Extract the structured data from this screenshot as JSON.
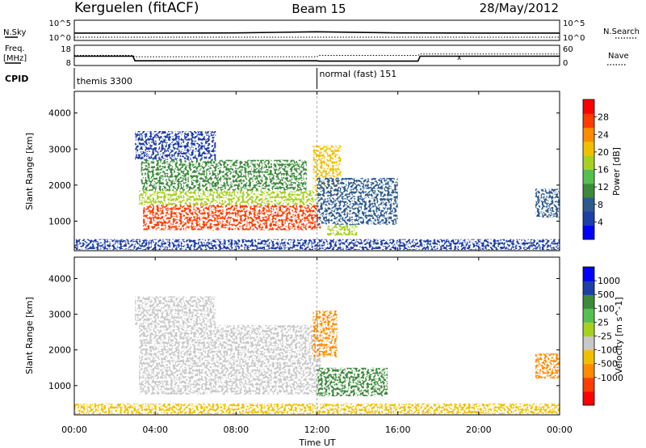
{
  "header": {
    "station": "Kerguelen (fitACF)",
    "beam": "Beam 15",
    "date": "28/May/2012"
  },
  "nsky_panel": {
    "left_label": "N.Sky",
    "left_ticks": [
      "10^5",
      "10^0"
    ],
    "right_ticks": [
      "10^5",
      "10^0"
    ],
    "right_label": "N.Search"
  },
  "freq_panel": {
    "left_label_1": "Freq.",
    "left_label_2": "[MHz]",
    "left_ticks": [
      "18",
      "8"
    ],
    "right_ticks": [
      "60",
      "0"
    ],
    "right_label": "Nave"
  },
  "cpid": {
    "label": "CPID",
    "segments": [
      {
        "name": "themis 3300",
        "start_hour": 0
      },
      {
        "name": "normal (fast) 151",
        "start_hour": 12
      }
    ]
  },
  "time_axis": {
    "label": "Time UT",
    "range": [
      0,
      24
    ],
    "ticks": [
      {
        "hour": 0,
        "label": "00:00"
      },
      {
        "hour": 4,
        "label": "04:00"
      },
      {
        "hour": 8,
        "label": "08:00"
      },
      {
        "hour": 12,
        "label": "12:00"
      },
      {
        "hour": 16,
        "label": "16:00"
      },
      {
        "hour": 20,
        "label": "20:00"
      },
      {
        "hour": 24,
        "label": "00:00"
      }
    ]
  },
  "colors": {
    "power_scale": [
      "#0000ff",
      "#1e3ea8",
      "#2e5a8c",
      "#3c8a3c",
      "#55c050",
      "#a8d020",
      "#f0c000",
      "#ff8c00",
      "#ff3c00",
      "#ff0000"
    ],
    "velocity_scale": [
      "#ff0000",
      "#ff3c00",
      "#ff8c00",
      "#f0c000",
      "#c8c8c8",
      "#a8d020",
      "#55c050",
      "#3c8a3c",
      "#1e3ea8",
      "#0000ff"
    ]
  },
  "chart_data": [
    {
      "type": "line",
      "name": "nsky",
      "x": [
        0,
        4,
        8,
        10,
        12,
        16,
        20,
        24
      ],
      "series": [
        {
          "name": "N.Sky",
          "values": [
            50,
            50,
            55,
            80,
            120,
            55,
            50,
            50
          ]
        },
        {
          "name": "N.Search",
          "values": [
            3,
            3,
            3,
            3,
            3,
            3,
            3,
            3
          ]
        }
      ]
    },
    {
      "type": "line",
      "name": "frequency",
      "x": [
        0,
        2.9,
        3.0,
        12.0,
        12.1,
        17.0,
        17.1,
        24
      ],
      "series": [
        {
          "name": "Freq",
          "values": [
            12.5,
            12.5,
            9.8,
            9.8,
            9.6,
            9.6,
            12.5,
            12.5
          ]
        },
        {
          "name": "Nave",
          "values": [
            30,
            30,
            25,
            25,
            30,
            30,
            35,
            35
          ]
        }
      ]
    },
    {
      "type": "heatmap",
      "name": "power",
      "ylabel": "Slant Range [km]",
      "colorbar_label": "Power [dB]",
      "colorbar_ticks": [
        4,
        8,
        12,
        16,
        20,
        24,
        28
      ],
      "colorbar_range": [
        0,
        32
      ],
      "xlim": [
        0,
        24
      ],
      "ylim": [
        180,
        4600
      ],
      "yticks": [
        1000,
        2000,
        3000,
        4000
      ],
      "regions": [
        {
          "t0": 3.4,
          "t1": 12.2,
          "r0": 750,
          "r1": 1450,
          "value": 27
        },
        {
          "t0": 3.2,
          "t1": 12.2,
          "r0": 1450,
          "r1": 1850,
          "value": 18
        },
        {
          "t0": 3.3,
          "t1": 11.5,
          "r0": 1850,
          "r1": 2700,
          "value": 10
        },
        {
          "t0": 3.0,
          "t1": 7.0,
          "r0": 2700,
          "r1": 3500,
          "value": 6
        },
        {
          "t0": 11.8,
          "t1": 13.2,
          "r0": 1800,
          "r1": 3100,
          "value": 20
        },
        {
          "t0": 12.5,
          "t1": 14.0,
          "r0": 600,
          "r1": 900,
          "value": 18
        },
        {
          "t0": 12.0,
          "t1": 16.0,
          "r0": 900,
          "r1": 2200,
          "value": 7
        },
        {
          "t0": 0.0,
          "t1": 24.0,
          "r0": 200,
          "r1": 500,
          "value": 6
        },
        {
          "t0": 22.8,
          "t1": 24.0,
          "r0": 1100,
          "r1": 1900,
          "value": 7
        }
      ]
    },
    {
      "type": "heatmap",
      "name": "velocity",
      "ylabel": "Slant Range [km]",
      "colorbar_label": "Velocity [m s^-1]",
      "colorbar_ticks": [
        "1000",
        "500",
        "100",
        "25",
        "-25",
        "-100",
        "-500",
        "-1000"
      ],
      "xlim": [
        0,
        24
      ],
      "ylim": [
        180,
        4600
      ],
      "yticks": [
        1000,
        2000,
        3000,
        4000
      ],
      "regions": [
        {
          "t0": 3.2,
          "t1": 12.2,
          "r0": 750,
          "r1": 2700,
          "value": 0
        },
        {
          "t0": 3.0,
          "t1": 7.0,
          "r0": 2700,
          "r1": 3500,
          "value": 0
        },
        {
          "t0": 11.8,
          "t1": 13.0,
          "r0": 1800,
          "r1": 3100,
          "value": -150
        },
        {
          "t0": 12.0,
          "t1": 15.5,
          "r0": 700,
          "r1": 1500,
          "value": 120
        },
        {
          "t0": 0.0,
          "t1": 24.0,
          "r0": 200,
          "r1": 500,
          "value": -80
        },
        {
          "t0": 22.8,
          "t1": 24.0,
          "r0": 1200,
          "r1": 1900,
          "value": -300
        }
      ]
    }
  ]
}
